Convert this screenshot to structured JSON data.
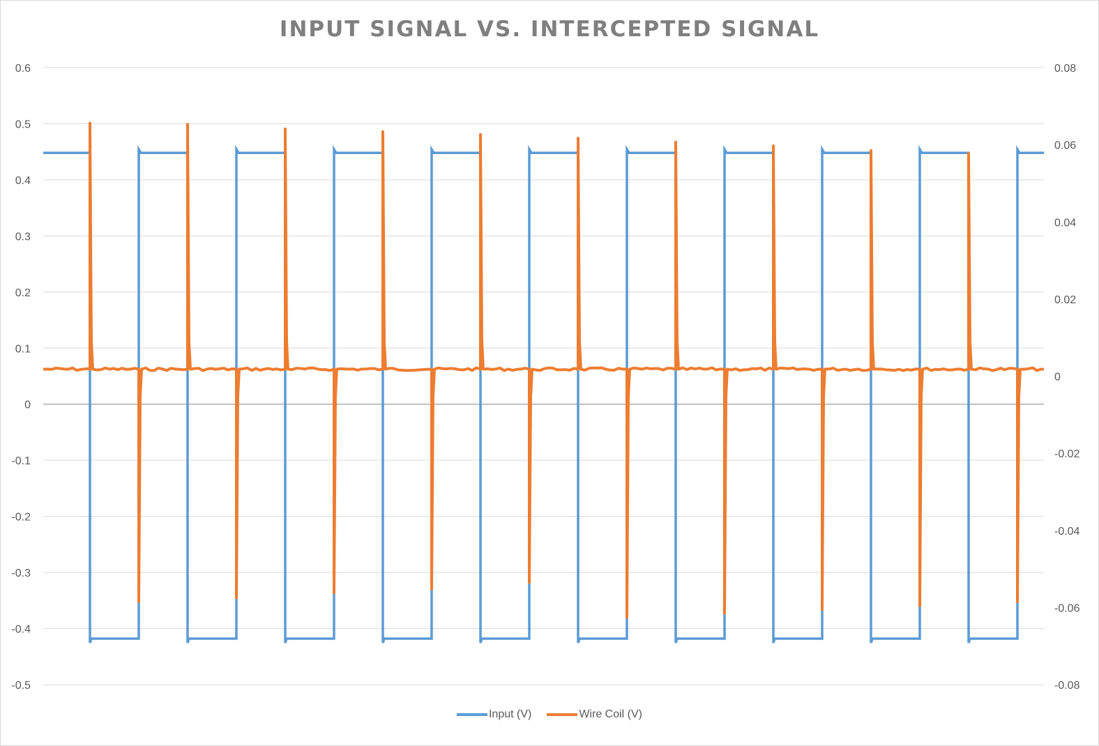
{
  "chart_data": {
    "type": "line",
    "title": "INPUT SIGNAL VS. INTERCEPTED SIGNAL",
    "xlabel": "",
    "ylabel": "",
    "y_left": {
      "min": -0.5,
      "max": 0.6,
      "step": 0.1,
      "ticks": [
        "0.6",
        "0.5",
        "0.4",
        "0.3",
        "0.2",
        "0.1",
        "0",
        "-0.1",
        "-0.2",
        "-0.3",
        "-0.4",
        "-0.5"
      ]
    },
    "y_right": {
      "min": -0.08,
      "max": 0.08,
      "step": 0.02,
      "ticks": [
        "0.08",
        "0.06",
        "0.04",
        "0.02",
        "0",
        "-0.02",
        "-0.04",
        "-0.06",
        "-0.08"
      ]
    },
    "grid": true,
    "legend": "bottom",
    "series": [
      {
        "name": "Input (V)",
        "axis": "left",
        "color": "#5B9BD5",
        "high_level": 0.448,
        "low_level": -0.418,
        "period": 1,
        "high_fraction": 0.5,
        "cycles": 10.3
      },
      {
        "name": "Wire Coil (V)",
        "axis": "right",
        "color": "#ED7D31",
        "baseline": 0.0018,
        "positive_spikes": [
          0.0656,
          0.0653,
          0.0641,
          0.0634,
          0.0627,
          0.0617,
          0.0607,
          0.0597,
          0.0585,
          0.0578
        ],
        "negative_spikes": [
          -0.0585,
          -0.0575,
          -0.0562,
          -0.0552,
          -0.0535,
          -0.0625,
          -0.0615,
          -0.0605,
          -0.0595,
          -0.0585
        ]
      }
    ]
  }
}
